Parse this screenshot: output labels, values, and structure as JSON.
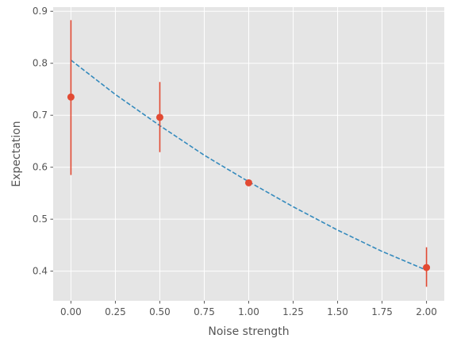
{
  "chart_data": {
    "type": "scatter",
    "title": "",
    "xlabel": "Noise strength",
    "ylabel": "Expectation",
    "xlim": [
      -0.1,
      2.1
    ],
    "ylim": [
      0.343,
      0.908
    ],
    "xticks": [
      0.0,
      0.25,
      0.5,
      0.75,
      1.0,
      1.25,
      1.5,
      1.75,
      2.0
    ],
    "xtick_labels": [
      "0.00",
      "0.25",
      "0.50",
      "0.75",
      "1.00",
      "1.25",
      "1.50",
      "1.75",
      "2.00"
    ],
    "yticks": [
      0.4,
      0.5,
      0.6,
      0.7,
      0.8,
      0.9
    ],
    "ytick_labels": [
      "0.4",
      "0.5",
      "0.6",
      "0.7",
      "0.8",
      "0.9"
    ],
    "grid": true,
    "style": "ggplot",
    "colors": {
      "plot_background": "#e5e5e5",
      "grid": "#ffffff",
      "points": "#e24a33",
      "fit_line": "#348abd",
      "text": "#555555"
    },
    "series": [
      {
        "kind": "errorbar",
        "x": [
          0.0,
          0.5,
          1.0,
          2.0
        ],
        "y": [
          0.735,
          0.696,
          0.57,
          0.407
        ],
        "yerr_low": [
          0.585,
          0.629,
          0.57,
          0.37
        ],
        "yerr_high": [
          0.883,
          0.764,
          0.57,
          0.446
        ]
      },
      {
        "kind": "dashed_line",
        "x": [
          0.0,
          0.25,
          0.5,
          0.75,
          1.0,
          1.25,
          1.5,
          1.75,
          2.0
        ],
        "y": [
          0.806,
          0.74,
          0.68,
          0.623,
          0.572,
          0.524,
          0.479,
          0.438,
          0.402
        ]
      }
    ]
  }
}
